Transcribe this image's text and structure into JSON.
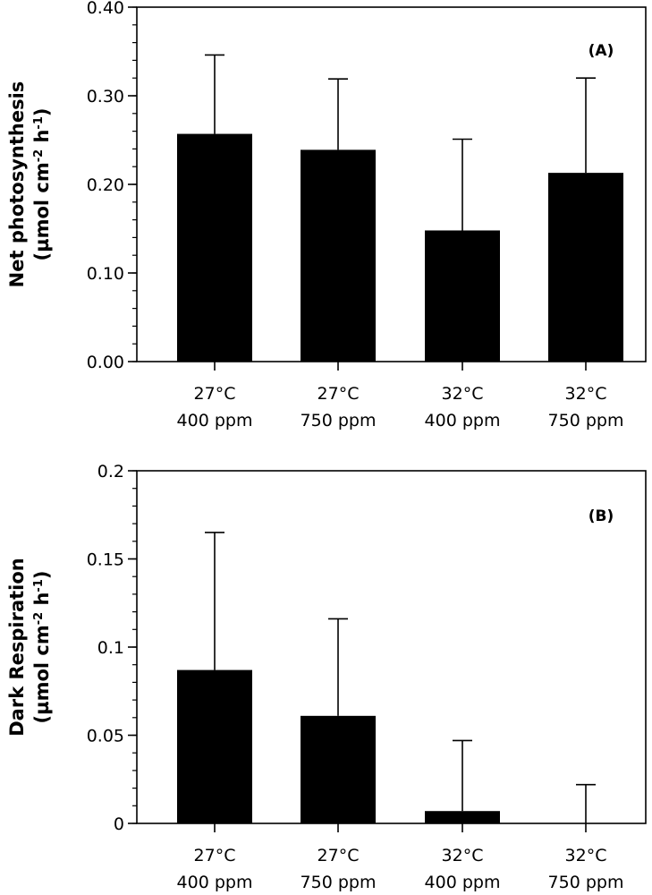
{
  "chart_data": [
    {
      "type": "bar",
      "panel_label": "(A)",
      "ylabel_line1": "Net photosynthesis",
      "ylabel_line2_prefix": "(µmol cm",
      "ylabel_line2_exp1": "-2",
      "ylabel_line2_mid": " h",
      "ylabel_line2_exp2": "-1",
      "ylabel_line2_suffix": ")",
      "categories": [
        [
          "27°C",
          "400 ppm"
        ],
        [
          "27°C",
          "750 ppm"
        ],
        [
          "32°C",
          "400 ppm"
        ],
        [
          "32°C",
          "750 ppm"
        ]
      ],
      "values": [
        0.257,
        0.239,
        0.148,
        0.213
      ],
      "error_upper": [
        0.346,
        0.319,
        0.251,
        0.32
      ],
      "ylim": [
        0,
        0.4
      ],
      "major_ticks": [
        0.0,
        0.1,
        0.2,
        0.3,
        0.4
      ],
      "major_tick_labels": [
        "0.00",
        "0.10",
        "0.20",
        "0.30",
        "0.40"
      ],
      "minor_step": 0.02,
      "bar_color": "#000000"
    },
    {
      "type": "bar",
      "panel_label": "(B)",
      "ylabel_line1": "Dark Respiration",
      "ylabel_line2_prefix": "(µmol cm",
      "ylabel_line2_exp1": "-2",
      "ylabel_line2_mid": " h",
      "ylabel_line2_exp2": "-1",
      "ylabel_line2_suffix": ")",
      "categories": [
        [
          "27°C",
          "400 ppm"
        ],
        [
          "27°C",
          "750 ppm"
        ],
        [
          "32°C",
          "400 ppm"
        ],
        [
          "32°C",
          "750 ppm"
        ]
      ],
      "values": [
        0.087,
        0.061,
        0.007,
        0.0
      ],
      "error_upper": [
        0.165,
        0.116,
        0.047,
        0.022
      ],
      "ylim": [
        0,
        0.2
      ],
      "major_ticks": [
        0,
        0.05,
        0.1,
        0.15,
        0.2
      ],
      "major_tick_labels": [
        "0",
        "0.05",
        "0.1",
        "0.15",
        "0.2"
      ],
      "minor_step": 0.01,
      "bar_color": "#000000"
    }
  ]
}
